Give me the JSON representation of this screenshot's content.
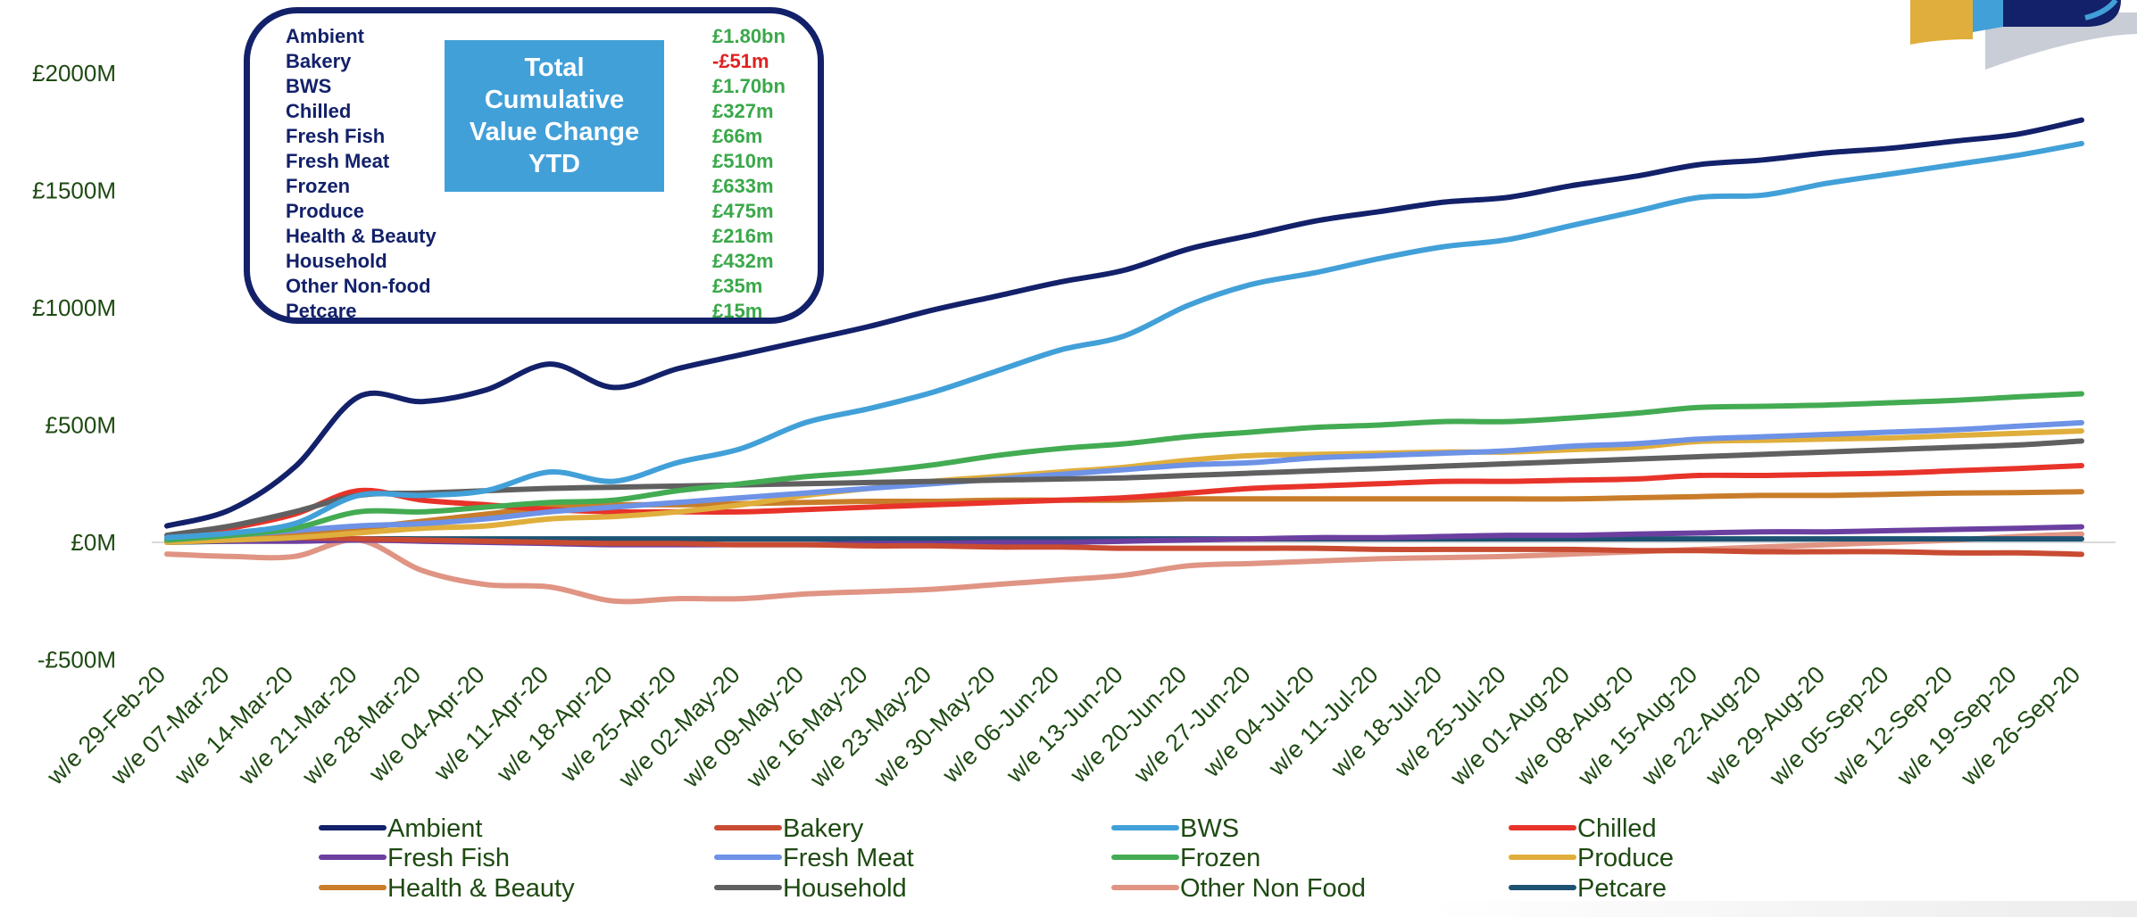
{
  "chart_data": {
    "type": "line",
    "y_tick_labels": [
      "£2000M",
      "£1500M",
      "£1000M",
      "£500M",
      "£0M",
      "-£500M"
    ],
    "y_ticks": [
      2000,
      1500,
      1000,
      500,
      0,
      -500
    ],
    "ylim": [
      -500,
      2000
    ],
    "x": [
      "w/e 29-Feb-20",
      "w/e 07-Mar-20",
      "w/e 14-Mar-20",
      "w/e 21-Mar-20",
      "w/e 28-Mar-20",
      "w/e 04-Apr-20",
      "w/e 11-Apr-20",
      "w/e 18-Apr-20",
      "w/e 25-Apr-20",
      "w/e 02-May-20",
      "w/e 09-May-20",
      "w/e 16-May-20",
      "w/e 23-May-20",
      "w/e 30-May-20",
      "w/e 06-Jun-20",
      "w/e 13-Jun-20",
      "w/e 20-Jun-20",
      "w/e 27-Jun-20",
      "w/e 04-Jul-20",
      "w/e 11-Jul-20",
      "w/e 18-Jul-20",
      "w/e 25-Jul-20",
      "w/e 01-Aug-20",
      "w/e 08-Aug-20",
      "w/e 15-Aug-20",
      "w/e 22-Aug-20",
      "w/e 29-Aug-20",
      "w/e 05-Sep-20",
      "w/e 12-Sep-20",
      "w/e 19-Sep-20",
      "w/e 26-Sep-20"
    ],
    "series": [
      {
        "name": "Ambient",
        "color": "#13216a",
        "values": [
          70,
          140,
          320,
          620,
          600,
          650,
          760,
          660,
          740,
          800,
          860,
          920,
          990,
          1050,
          1110,
          1160,
          1250,
          1310,
          1370,
          1410,
          1450,
          1470,
          1520,
          1560,
          1610,
          1630,
          1660,
          1680,
          1710,
          1740,
          1800
        ]
      },
      {
        "name": "Bakery",
        "color": "#c84b32",
        "values": [
          10,
          15,
          20,
          15,
          10,
          5,
          0,
          -5,
          -5,
          -10,
          -10,
          -15,
          -15,
          -20,
          -20,
          -25,
          -25,
          -25,
          -25,
          -30,
          -30,
          -30,
          -30,
          -35,
          -35,
          -40,
          -40,
          -40,
          -45,
          -45,
          -51
        ]
      },
      {
        "name": "BWS",
        "color": "#42a0d8",
        "values": [
          20,
          40,
          80,
          200,
          200,
          220,
          300,
          260,
          340,
          400,
          510,
          570,
          640,
          730,
          820,
          880,
          1010,
          1100,
          1150,
          1210,
          1260,
          1290,
          1350,
          1410,
          1470,
          1480,
          1530,
          1570,
          1610,
          1650,
          1700
        ]
      },
      {
        "name": "Chilled",
        "color": "#e8332a",
        "values": [
          5,
          60,
          120,
          220,
          180,
          160,
          140,
          130,
          130,
          130,
          140,
          150,
          160,
          170,
          180,
          190,
          210,
          230,
          240,
          250,
          260,
          260,
          265,
          270,
          285,
          285,
          290,
          295,
          305,
          315,
          327
        ]
      },
      {
        "name": "Fresh Fish",
        "color": "#6b3fa0",
        "values": [
          5,
          5,
          5,
          10,
          5,
          0,
          -5,
          -10,
          -10,
          -10,
          -10,
          -5,
          -5,
          0,
          0,
          5,
          10,
          15,
          20,
          20,
          25,
          30,
          30,
          35,
          40,
          45,
          45,
          50,
          55,
          60,
          66
        ]
      },
      {
        "name": "Fresh Meat",
        "color": "#6d92e6",
        "values": [
          10,
          30,
          50,
          70,
          80,
          100,
          130,
          150,
          170,
          190,
          210,
          230,
          250,
          270,
          290,
          310,
          330,
          340,
          360,
          370,
          380,
          390,
          410,
          420,
          440,
          450,
          460,
          470,
          480,
          495,
          510
        ]
      },
      {
        "name": "Frozen",
        "color": "#43ab52",
        "values": [
          10,
          30,
          60,
          130,
          130,
          150,
          170,
          180,
          220,
          250,
          280,
          300,
          330,
          370,
          400,
          420,
          450,
          470,
          490,
          500,
          515,
          515,
          530,
          550,
          575,
          580,
          585,
          595,
          605,
          620,
          633
        ]
      },
      {
        "name": "Produce",
        "color": "#e0ae3c",
        "values": [
          0,
          10,
          20,
          40,
          60,
          70,
          100,
          110,
          130,
          160,
          200,
          230,
          260,
          280,
          300,
          320,
          350,
          370,
          375,
          380,
          385,
          385,
          395,
          405,
          430,
          435,
          440,
          445,
          455,
          465,
          475
        ]
      },
      {
        "name": "Health & Beauty",
        "color": "#c97d2a",
        "values": [
          10,
          20,
          40,
          60,
          90,
          120,
          150,
          160,
          160,
          165,
          170,
          175,
          175,
          180,
          180,
          180,
          185,
          185,
          185,
          185,
          185,
          185,
          185,
          190,
          195,
          200,
          200,
          205,
          210,
          212,
          216
        ]
      },
      {
        "name": "Household",
        "color": "#606060",
        "values": [
          30,
          70,
          130,
          200,
          210,
          220,
          230,
          235,
          240,
          245,
          250,
          255,
          260,
          265,
          270,
          275,
          285,
          295,
          305,
          315,
          325,
          335,
          345,
          355,
          365,
          375,
          385,
          395,
          405,
          415,
          432
        ]
      },
      {
        "name": "Other Non Food",
        "color": "#e09483",
        "values": [
          -50,
          -60,
          -60,
          10,
          -120,
          -180,
          -190,
          -250,
          -240,
          -240,
          -220,
          -210,
          -200,
          -180,
          -160,
          -140,
          -100,
          -90,
          -80,
          -70,
          -65,
          -60,
          -50,
          -40,
          -30,
          -20,
          -10,
          0,
          10,
          25,
          35
        ]
      },
      {
        "name": "Petcare",
        "color": "#1d5273",
        "values": [
          0,
          5,
          10,
          15,
          15,
          15,
          15,
          15,
          15,
          15,
          15,
          15,
          15,
          15,
          15,
          15,
          15,
          15,
          15,
          15,
          15,
          15,
          15,
          15,
          15,
          15,
          15,
          15,
          15,
          15,
          15
        ]
      }
    ]
  },
  "summary": {
    "title": "Total Cumulative Value Change YTD",
    "rows": [
      {
        "name": "Ambient",
        "value": "£1.80bn",
        "negative": false
      },
      {
        "name": "Bakery",
        "value": "-£51m",
        "negative": true
      },
      {
        "name": "BWS",
        "value": "£1.70bn",
        "negative": false
      },
      {
        "name": "Chilled",
        "value": "£327m",
        "negative": false
      },
      {
        "name": "Fresh Fish",
        "value": "£66m",
        "negative": false
      },
      {
        "name": "Fresh Meat",
        "value": "£510m",
        "negative": false
      },
      {
        "name": "Frozen",
        "value": "£633m",
        "negative": false
      },
      {
        "name": "Produce",
        "value": "£475m",
        "negative": false
      },
      {
        "name": "Health & Beauty",
        "value": "£216m",
        "negative": false
      },
      {
        "name": "Household",
        "value": "£432m",
        "negative": false
      },
      {
        "name": "Other Non-food",
        "value": "£35m",
        "negative": false
      },
      {
        "name": "Petcare",
        "value": "£15m",
        "negative": false
      }
    ]
  },
  "logo": {
    "colors": [
      "#e0ae3c",
      "#42a0d8",
      "#13216a",
      "#c8cdd6"
    ]
  }
}
